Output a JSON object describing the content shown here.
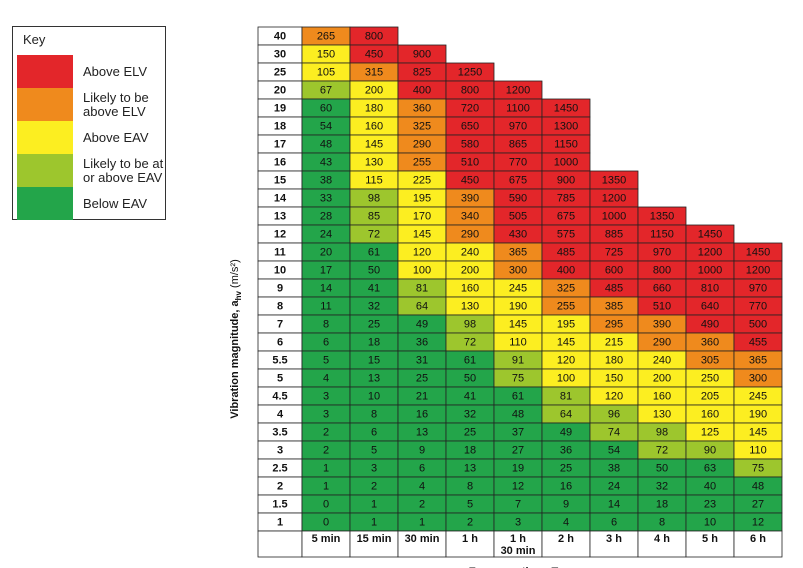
{
  "key": {
    "title": "Key",
    "items": [
      {
        "label": "Above ELV",
        "color": "#e3262a"
      },
      {
        "label": "Likely to be above ELV",
        "color": "#ef8a1d"
      },
      {
        "label": "Above EAV",
        "color": "#fcee21"
      },
      {
        "label": "Likely to be at or above EAV",
        "color": "#9dc62d"
      },
      {
        "label": "Below EAV",
        "color": "#23a54a"
      }
    ]
  },
  "chart_data": {
    "type": "table",
    "title": "",
    "xlabel": "Exposure time, T",
    "ylabel": "Vibration magnitude, a_hv (m/s²)",
    "columns": [
      "5 min",
      "15 min",
      "30 min",
      "1 h",
      "1 h 30 min",
      "2 h",
      "3 h",
      "4 h",
      "5 h",
      "6 h"
    ],
    "column_lines": [
      [
        "5 min"
      ],
      [
        "15 min"
      ],
      [
        "30 min"
      ],
      [
        "1 h"
      ],
      [
        "1 h",
        "30 min"
      ],
      [
        "2 h"
      ],
      [
        "3 h"
      ],
      [
        "4 h"
      ],
      [
        "5 h"
      ],
      [
        "6 h"
      ]
    ],
    "rows": [
      {
        "label": "40",
        "cells": [
          [
            265,
            "o"
          ],
          [
            800,
            "r"
          ]
        ]
      },
      {
        "label": "30",
        "cells": [
          [
            150,
            "y"
          ],
          [
            450,
            "r"
          ],
          [
            900,
            "r"
          ]
        ]
      },
      {
        "label": "25",
        "cells": [
          [
            105,
            "y"
          ],
          [
            315,
            "o"
          ],
          [
            825,
            "r"
          ],
          [
            1250,
            "r"
          ]
        ]
      },
      {
        "label": "20",
        "cells": [
          [
            67,
            "lg"
          ],
          [
            200,
            "y"
          ],
          [
            400,
            "r"
          ],
          [
            800,
            "r"
          ],
          [
            1200,
            "r"
          ]
        ]
      },
      {
        "label": "19",
        "cells": [
          [
            60,
            "g"
          ],
          [
            180,
            "y"
          ],
          [
            360,
            "o"
          ],
          [
            720,
            "r"
          ],
          [
            1100,
            "r"
          ],
          [
            1450,
            "r"
          ]
        ]
      },
      {
        "label": "18",
        "cells": [
          [
            54,
            "g"
          ],
          [
            160,
            "y"
          ],
          [
            325,
            "o"
          ],
          [
            650,
            "r"
          ],
          [
            970,
            "r"
          ],
          [
            1300,
            "r"
          ]
        ]
      },
      {
        "label": "17",
        "cells": [
          [
            48,
            "g"
          ],
          [
            145,
            "y"
          ],
          [
            290,
            "o"
          ],
          [
            580,
            "r"
          ],
          [
            865,
            "r"
          ],
          [
            1150,
            "r"
          ]
        ]
      },
      {
        "label": "16",
        "cells": [
          [
            43,
            "g"
          ],
          [
            130,
            "y"
          ],
          [
            255,
            "o"
          ],
          [
            510,
            "r"
          ],
          [
            770,
            "r"
          ],
          [
            1000,
            "r"
          ]
        ]
      },
      {
        "label": "15",
        "cells": [
          [
            38,
            "g"
          ],
          [
            115,
            "y"
          ],
          [
            225,
            "y"
          ],
          [
            450,
            "r"
          ],
          [
            675,
            "r"
          ],
          [
            900,
            "r"
          ],
          [
            1350,
            "r"
          ]
        ]
      },
      {
        "label": "14",
        "cells": [
          [
            33,
            "g"
          ],
          [
            98,
            "lg"
          ],
          [
            195,
            "y"
          ],
          [
            390,
            "o"
          ],
          [
            590,
            "r"
          ],
          [
            785,
            "r"
          ],
          [
            1200,
            "r"
          ]
        ]
      },
      {
        "label": "13",
        "cells": [
          [
            28,
            "g"
          ],
          [
            85,
            "lg"
          ],
          [
            170,
            "y"
          ],
          [
            340,
            "o"
          ],
          [
            505,
            "r"
          ],
          [
            675,
            "r"
          ],
          [
            1000,
            "r"
          ],
          [
            1350,
            "r"
          ]
        ]
      },
      {
        "label": "12",
        "cells": [
          [
            24,
            "g"
          ],
          [
            72,
            "lg"
          ],
          [
            145,
            "y"
          ],
          [
            290,
            "o"
          ],
          [
            430,
            "r"
          ],
          [
            575,
            "r"
          ],
          [
            885,
            "r"
          ],
          [
            1150,
            "r"
          ],
          [
            1450,
            "r"
          ]
        ]
      },
      {
        "label": "11",
        "cells": [
          [
            20,
            "g"
          ],
          [
            61,
            "g"
          ],
          [
            120,
            "y"
          ],
          [
            240,
            "y"
          ],
          [
            365,
            "o"
          ],
          [
            485,
            "r"
          ],
          [
            725,
            "r"
          ],
          [
            970,
            "r"
          ],
          [
            1200,
            "r"
          ],
          [
            1450,
            "r"
          ]
        ]
      },
      {
        "label": "10",
        "cells": [
          [
            17,
            "g"
          ],
          [
            50,
            "g"
          ],
          [
            100,
            "y"
          ],
          [
            200,
            "y"
          ],
          [
            300,
            "o"
          ],
          [
            400,
            "r"
          ],
          [
            600,
            "r"
          ],
          [
            800,
            "r"
          ],
          [
            1000,
            "r"
          ],
          [
            1200,
            "r"
          ]
        ]
      },
      {
        "label": "9",
        "cells": [
          [
            14,
            "g"
          ],
          [
            41,
            "g"
          ],
          [
            81,
            "lg"
          ],
          [
            160,
            "y"
          ],
          [
            245,
            "y"
          ],
          [
            325,
            "o"
          ],
          [
            485,
            "r"
          ],
          [
            660,
            "r"
          ],
          [
            810,
            "r"
          ],
          [
            970,
            "r"
          ]
        ]
      },
      {
        "label": "8",
        "cells": [
          [
            11,
            "g"
          ],
          [
            32,
            "g"
          ],
          [
            64,
            "lg"
          ],
          [
            130,
            "y"
          ],
          [
            190,
            "y"
          ],
          [
            255,
            "o"
          ],
          [
            385,
            "o"
          ],
          [
            510,
            "r"
          ],
          [
            640,
            "r"
          ],
          [
            770,
            "r"
          ]
        ]
      },
      {
        "label": "7",
        "cells": [
          [
            8,
            "g"
          ],
          [
            25,
            "g"
          ],
          [
            49,
            "g"
          ],
          [
            98,
            "lg"
          ],
          [
            145,
            "y"
          ],
          [
            195,
            "y"
          ],
          [
            295,
            "o"
          ],
          [
            390,
            "o"
          ],
          [
            490,
            "r"
          ],
          [
            500,
            "r"
          ]
        ]
      },
      {
        "label": "6",
        "cells": [
          [
            6,
            "g"
          ],
          [
            18,
            "g"
          ],
          [
            36,
            "g"
          ],
          [
            72,
            "lg"
          ],
          [
            110,
            "y"
          ],
          [
            145,
            "y"
          ],
          [
            215,
            "y"
          ],
          [
            290,
            "o"
          ],
          [
            360,
            "o"
          ],
          [
            455,
            "r"
          ]
        ]
      },
      {
        "label": "5.5",
        "cells": [
          [
            5,
            "g"
          ],
          [
            15,
            "g"
          ],
          [
            31,
            "g"
          ],
          [
            61,
            "g"
          ],
          [
            91,
            "lg"
          ],
          [
            120,
            "y"
          ],
          [
            180,
            "y"
          ],
          [
            240,
            "y"
          ],
          [
            305,
            "o"
          ],
          [
            365,
            "o"
          ]
        ]
      },
      {
        "label": "5",
        "cells": [
          [
            4,
            "g"
          ],
          [
            13,
            "g"
          ],
          [
            25,
            "g"
          ],
          [
            50,
            "g"
          ],
          [
            75,
            "lg"
          ],
          [
            100,
            "y"
          ],
          [
            150,
            "y"
          ],
          [
            200,
            "y"
          ],
          [
            250,
            "y"
          ],
          [
            300,
            "o"
          ]
        ]
      },
      {
        "label": "4.5",
        "cells": [
          [
            3,
            "g"
          ],
          [
            10,
            "g"
          ],
          [
            21,
            "g"
          ],
          [
            41,
            "g"
          ],
          [
            61,
            "g"
          ],
          [
            81,
            "lg"
          ],
          [
            120,
            "y"
          ],
          [
            160,
            "y"
          ],
          [
            205,
            "y"
          ],
          [
            245,
            "y"
          ]
        ]
      },
      {
        "label": "4",
        "cells": [
          [
            3,
            "g"
          ],
          [
            8,
            "g"
          ],
          [
            16,
            "g"
          ],
          [
            32,
            "g"
          ],
          [
            48,
            "g"
          ],
          [
            64,
            "lg"
          ],
          [
            96,
            "lg"
          ],
          [
            130,
            "y"
          ],
          [
            160,
            "y"
          ],
          [
            190,
            "y"
          ]
        ]
      },
      {
        "label": "3.5",
        "cells": [
          [
            2,
            "g"
          ],
          [
            6,
            "g"
          ],
          [
            13,
            "g"
          ],
          [
            25,
            "g"
          ],
          [
            37,
            "g"
          ],
          [
            49,
            "g"
          ],
          [
            74,
            "lg"
          ],
          [
            98,
            "lg"
          ],
          [
            125,
            "y"
          ],
          [
            145,
            "y"
          ]
        ]
      },
      {
        "label": "3",
        "cells": [
          [
            2,
            "g"
          ],
          [
            5,
            "g"
          ],
          [
            9,
            "g"
          ],
          [
            18,
            "g"
          ],
          [
            27,
            "g"
          ],
          [
            36,
            "g"
          ],
          [
            54,
            "g"
          ],
          [
            72,
            "lg"
          ],
          [
            90,
            "lg"
          ],
          [
            110,
            "y"
          ]
        ]
      },
      {
        "label": "2.5",
        "cells": [
          [
            1,
            "g"
          ],
          [
            3,
            "g"
          ],
          [
            6,
            "g"
          ],
          [
            13,
            "g"
          ],
          [
            19,
            "g"
          ],
          [
            25,
            "g"
          ],
          [
            38,
            "g"
          ],
          [
            50,
            "g"
          ],
          [
            63,
            "g"
          ],
          [
            75,
            "lg"
          ]
        ]
      },
      {
        "label": "2",
        "cells": [
          [
            1,
            "g"
          ],
          [
            2,
            "g"
          ],
          [
            4,
            "g"
          ],
          [
            8,
            "g"
          ],
          [
            12,
            "g"
          ],
          [
            16,
            "g"
          ],
          [
            24,
            "g"
          ],
          [
            32,
            "g"
          ],
          [
            40,
            "g"
          ],
          [
            48,
            "g"
          ]
        ]
      },
      {
        "label": "1.5",
        "cells": [
          [
            0,
            "g"
          ],
          [
            1,
            "g"
          ],
          [
            2,
            "g"
          ],
          [
            5,
            "g"
          ],
          [
            7,
            "g"
          ],
          [
            9,
            "g"
          ],
          [
            14,
            "g"
          ],
          [
            18,
            "g"
          ],
          [
            23,
            "g"
          ],
          [
            27,
            "g"
          ]
        ]
      },
      {
        "label": "1",
        "cells": [
          [
            0,
            "g"
          ],
          [
            1,
            "g"
          ],
          [
            1,
            "g"
          ],
          [
            2,
            "g"
          ],
          [
            3,
            "g"
          ],
          [
            4,
            "g"
          ],
          [
            6,
            "g"
          ],
          [
            8,
            "g"
          ],
          [
            10,
            "g"
          ],
          [
            12,
            "g"
          ]
        ]
      }
    ],
    "colors": {
      "r": "#e3262a",
      "o": "#ef8a1d",
      "y": "#fcee21",
      "lg": "#9dc62d",
      "g": "#23a54a"
    }
  }
}
